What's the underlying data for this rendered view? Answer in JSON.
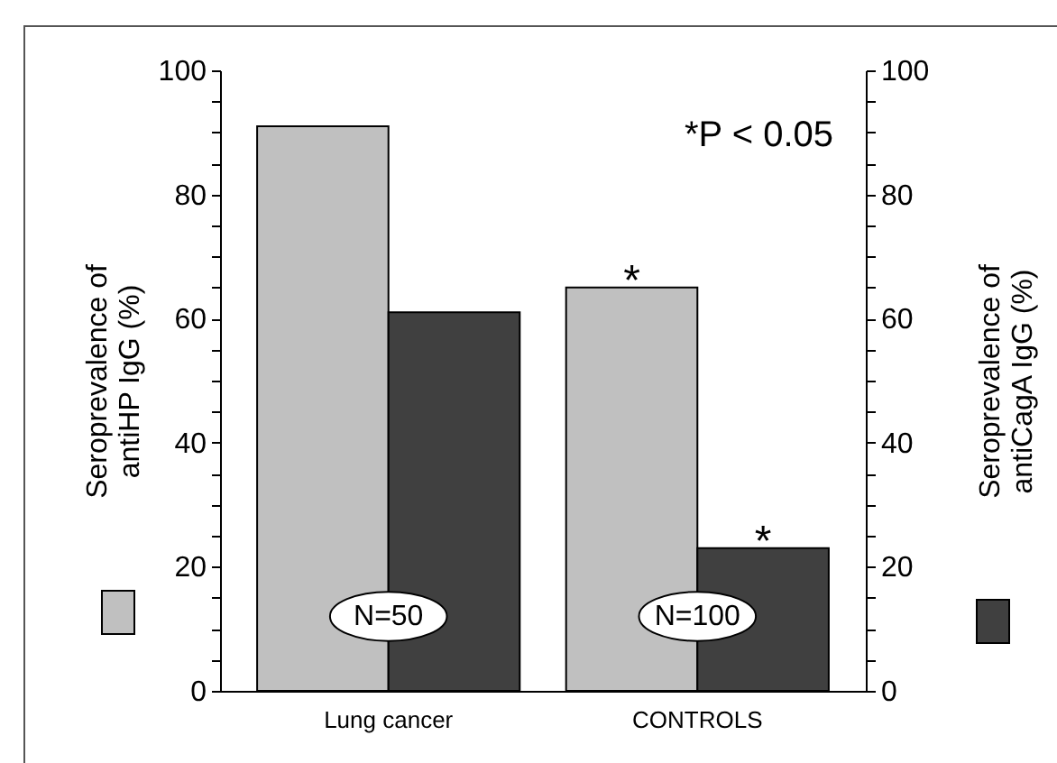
{
  "chart_data": {
    "type": "bar",
    "categories": [
      "Lung cancer",
      "CONTROLS"
    ],
    "series": [
      {
        "color": "#c0c0c0",
        "values": [
          91,
          65
        ]
      },
      {
        "color": "#404040",
        "values": [
          61,
          23
        ],
        "axis": "y2"
      }
    ],
    "ylabel": "Seroprevalence of\nantiHP IgG (%)",
    "y2label": "Seroprevalence of\nantiCagA IgG (%)",
    "ylim": [
      0,
      100
    ],
    "yticks": [
      0,
      {
        "value": 5,
        "label": null
      },
      {
        "value": 10,
        "label": null
      },
      {
        "value": 15,
        "label": null
      },
      20,
      {
        "value": 25,
        "label": null
      },
      {
        "value": 30,
        "label": null
      },
      {
        "value": 35,
        "label": null
      },
      40,
      {
        "value": 45,
        "label": null
      },
      {
        "value": 50,
        "label": null
      },
      {
        "value": 55,
        "label": null
      },
      60,
      {
        "value": 65,
        "label": null
      },
      {
        "value": 70,
        "label": null
      },
      {
        "value": 75,
        "label": null
      },
      80,
      {
        "value": 85,
        "label": null
      },
      {
        "value": 90,
        "label": null
      },
      {
        "value": 95,
        "label": null
      },
      100
    ],
    "y2lim": [
      0,
      100
    ],
    "y2ticks": [
      0,
      {
        "value": 5,
        "label": null
      },
      {
        "value": 10,
        "label": null
      },
      {
        "value": 15,
        "label": null
      },
      20,
      {
        "value": 25,
        "label": null
      },
      {
        "value": 30,
        "label": null
      },
      {
        "value": 35,
        "label": null
      },
      40,
      {
        "value": 45,
        "label": null
      },
      {
        "value": 50,
        "label": null
      },
      {
        "value": 55,
        "label": null
      },
      60,
      {
        "value": 65,
        "label": null
      },
      {
        "value": 70,
        "label": null
      },
      {
        "value": 75,
        "label": null
      },
      80,
      {
        "value": 85,
        "label": null
      },
      {
        "value": 90,
        "label": null
      },
      {
        "value": 95,
        "label": null
      },
      100
    ],
    "annotations": [
      "*P < 0.05",
      {
        "text": "*",
        "x": "CONTROLS",
        "y": 65
      },
      {
        "text": "*",
        "x": "CONTROLS",
        "y": 23
      },
      {
        "text": "N=50",
        "x": "Lung cancer",
        "y": 12
      },
      {
        "text": "N=100",
        "x": "CONTROLS",
        "y": 12
      }
    ]
  }
}
